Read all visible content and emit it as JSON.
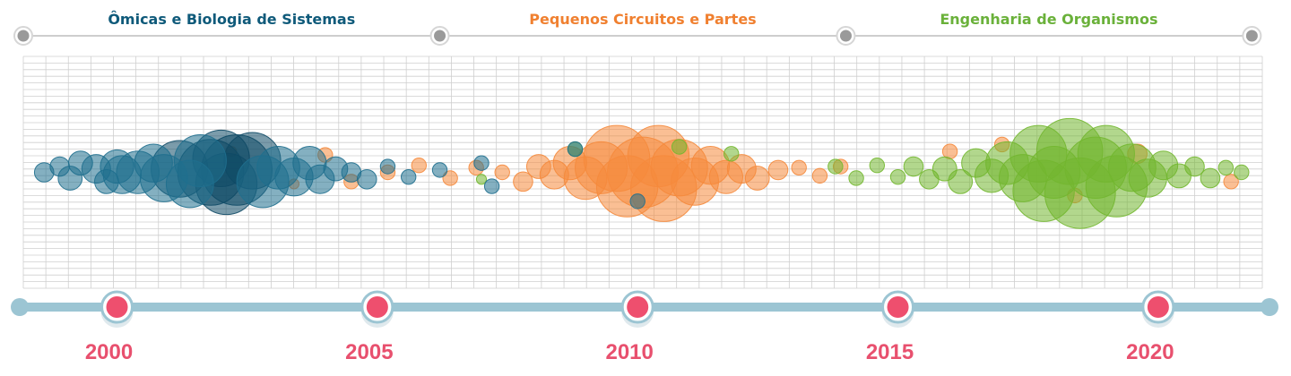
{
  "colors": {
    "omics": "#1f6f8e",
    "omics_dark": "#0f4a66",
    "circuits": "#f58a3c",
    "organisms": "#72b72f",
    "timeline": "#9cc5d3",
    "marker": "#ee4f6e",
    "grid": "#cfcfcf",
    "node": "#9a9a9a"
  },
  "chart_data": {
    "type": "scatter",
    "title": "",
    "xlabel": "",
    "ylabel": "",
    "xlim": [
      1998.2,
      2022
    ],
    "ylim": [
      -1,
      1
    ],
    "grid": true,
    "x_ticks": [
      "2000",
      "2005",
      "2010",
      "2015",
      "2020"
    ],
    "eras": [
      {
        "label": "Ômicas e Biologia de Sistemas",
        "start": 1998.2,
        "end": 2006.2,
        "color": "#0f5a7a"
      },
      {
        "label": "Pequenos Circuitos e Partes",
        "start": 2006.2,
        "end": 2014.0,
        "color": "#f08030"
      },
      {
        "label": "Engenharia de Organismos",
        "start": 2014.0,
        "end": 2021.8,
        "color": "#6ab13a"
      }
    ],
    "series": [
      {
        "category": "omics",
        "color": "#1f6f8e",
        "points": [
          {
            "x": 1998.6,
            "y": 0.0,
            "s": 3
          },
          {
            "x": 1998.9,
            "y": 0.05,
            "s": 3
          },
          {
            "x": 1999.1,
            "y": -0.05,
            "s": 4
          },
          {
            "x": 1999.3,
            "y": 0.08,
            "s": 4
          },
          {
            "x": 1999.6,
            "y": 0.03,
            "s": 5
          },
          {
            "x": 1999.8,
            "y": -0.08,
            "s": 4
          },
          {
            "x": 2000.0,
            "y": 0.05,
            "s": 6
          },
          {
            "x": 2000.1,
            "y": -0.02,
            "s": 7
          },
          {
            "x": 2000.4,
            "y": 0.0,
            "s": 8
          },
          {
            "x": 2000.7,
            "y": 0.08,
            "s": 7
          },
          {
            "x": 2000.9,
            "y": -0.05,
            "s": 9
          },
          {
            "x": 2001.2,
            "y": 0.03,
            "s": 11
          },
          {
            "x": 2001.4,
            "y": -0.1,
            "s": 9
          },
          {
            "x": 2001.6,
            "y": 0.1,
            "s": 10
          },
          {
            "x": 2001.8,
            "y": 0.0,
            "s": 13
          },
          {
            "x": 2002.0,
            "y": 0.12,
            "s": 11
          },
          {
            "x": 2002.1,
            "y": -0.1,
            "s": 12
          },
          {
            "x": 2002.3,
            "y": 0.02,
            "s": 14
          },
          {
            "x": 2002.6,
            "y": 0.1,
            "s": 11
          },
          {
            "x": 2002.8,
            "y": -0.08,
            "s": 10
          },
          {
            "x": 2003.1,
            "y": 0.04,
            "s": 8
          },
          {
            "x": 2003.4,
            "y": -0.04,
            "s": 7
          },
          {
            "x": 2003.7,
            "y": 0.08,
            "s": 6
          },
          {
            "x": 2003.9,
            "y": -0.06,
            "s": 5
          },
          {
            "x": 2004.2,
            "y": 0.03,
            "s": 4
          },
          {
            "x": 2004.5,
            "y": 0.0,
            "s": 3
          },
          {
            "x": 2004.8,
            "y": -0.06,
            "s": 3
          },
          {
            "x": 2005.2,
            "y": 0.05,
            "s": 2
          },
          {
            "x": 2005.6,
            "y": -0.04,
            "s": 2
          },
          {
            "x": 2006.2,
            "y": 0.02,
            "s": 2
          },
          {
            "x": 2007.0,
            "y": 0.08,
            "s": 2
          },
          {
            "x": 2007.2,
            "y": -0.12,
            "s": 2
          },
          {
            "x": 2008.8,
            "y": 0.2,
            "s": 2
          },
          {
            "x": 2010.0,
            "y": -0.25,
            "s": 2
          }
        ]
      },
      {
        "category": "circuits",
        "color": "#f58a3c",
        "points": [
          {
            "x": 2002.2,
            "y": 0.18,
            "s": 1
          },
          {
            "x": 2003.4,
            "y": -0.1,
            "s": 1
          },
          {
            "x": 2004.0,
            "y": 0.15,
            "s": 2
          },
          {
            "x": 2004.5,
            "y": -0.08,
            "s": 2
          },
          {
            "x": 2005.2,
            "y": 0.0,
            "s": 2
          },
          {
            "x": 2005.8,
            "y": 0.06,
            "s": 2
          },
          {
            "x": 2006.4,
            "y": -0.05,
            "s": 2
          },
          {
            "x": 2006.9,
            "y": 0.04,
            "s": 2
          },
          {
            "x": 2007.4,
            "y": 0.0,
            "s": 2
          },
          {
            "x": 2007.8,
            "y": -0.08,
            "s": 3
          },
          {
            "x": 2008.1,
            "y": 0.05,
            "s": 4
          },
          {
            "x": 2008.4,
            "y": -0.02,
            "s": 5
          },
          {
            "x": 2008.7,
            "y": 0.08,
            "s": 6
          },
          {
            "x": 2009.0,
            "y": -0.05,
            "s": 8
          },
          {
            "x": 2009.3,
            "y": 0.04,
            "s": 10
          },
          {
            "x": 2009.6,
            "y": 0.12,
            "s": 13
          },
          {
            "x": 2009.8,
            "y": -0.12,
            "s": 12
          },
          {
            "x": 2010.1,
            "y": 0.0,
            "s": 14
          },
          {
            "x": 2010.4,
            "y": 0.14,
            "s": 12
          },
          {
            "x": 2010.5,
            "y": -0.14,
            "s": 13
          },
          {
            "x": 2010.8,
            "y": 0.04,
            "s": 11
          },
          {
            "x": 2011.1,
            "y": -0.08,
            "s": 9
          },
          {
            "x": 2011.4,
            "y": 0.06,
            "s": 7
          },
          {
            "x": 2011.7,
            "y": -0.04,
            "s": 6
          },
          {
            "x": 2012.0,
            "y": 0.03,
            "s": 5
          },
          {
            "x": 2012.3,
            "y": -0.05,
            "s": 4
          },
          {
            "x": 2012.7,
            "y": 0.02,
            "s": 3
          },
          {
            "x": 2013.1,
            "y": 0.04,
            "s": 2
          },
          {
            "x": 2013.5,
            "y": -0.03,
            "s": 2
          },
          {
            "x": 2013.9,
            "y": 0.05,
            "s": 2
          },
          {
            "x": 2016.0,
            "y": 0.18,
            "s": 2
          },
          {
            "x": 2017.0,
            "y": 0.24,
            "s": 2
          },
          {
            "x": 2018.4,
            "y": -0.2,
            "s": 2
          },
          {
            "x": 2019.6,
            "y": 0.16,
            "s": 3
          },
          {
            "x": 2021.4,
            "y": -0.08,
            "s": 2
          }
        ]
      },
      {
        "category": "organisms",
        "color": "#72b72f",
        "points": [
          {
            "x": 2007.0,
            "y": -0.06,
            "s": 1
          },
          {
            "x": 2008.8,
            "y": 0.2,
            "s": 2
          },
          {
            "x": 2010.8,
            "y": 0.22,
            "s": 2
          },
          {
            "x": 2011.8,
            "y": 0.16,
            "s": 2
          },
          {
            "x": 2013.8,
            "y": 0.05,
            "s": 2
          },
          {
            "x": 2014.2,
            "y": -0.05,
            "s": 2
          },
          {
            "x": 2014.6,
            "y": 0.06,
            "s": 2
          },
          {
            "x": 2015.0,
            "y": -0.04,
            "s": 2
          },
          {
            "x": 2015.3,
            "y": 0.05,
            "s": 3
          },
          {
            "x": 2015.6,
            "y": -0.06,
            "s": 3
          },
          {
            "x": 2015.9,
            "y": 0.03,
            "s": 4
          },
          {
            "x": 2016.2,
            "y": -0.08,
            "s": 4
          },
          {
            "x": 2016.5,
            "y": 0.08,
            "s": 5
          },
          {
            "x": 2016.8,
            "y": -0.03,
            "s": 6
          },
          {
            "x": 2017.1,
            "y": 0.08,
            "s": 8
          },
          {
            "x": 2017.4,
            "y": -0.05,
            "s": 9
          },
          {
            "x": 2017.7,
            "y": 0.16,
            "s": 11
          },
          {
            "x": 2017.8,
            "y": -0.16,
            "s": 12
          },
          {
            "x": 2018.0,
            "y": 0.0,
            "s": 10
          },
          {
            "x": 2018.3,
            "y": 0.18,
            "s": 13
          },
          {
            "x": 2018.5,
            "y": -0.18,
            "s": 14
          },
          {
            "x": 2018.8,
            "y": 0.04,
            "s": 12
          },
          {
            "x": 2019.0,
            "y": 0.16,
            "s": 11
          },
          {
            "x": 2019.2,
            "y": -0.12,
            "s": 12
          },
          {
            "x": 2019.5,
            "y": 0.04,
            "s": 9
          },
          {
            "x": 2019.8,
            "y": -0.05,
            "s": 7
          },
          {
            "x": 2020.1,
            "y": 0.06,
            "s": 5
          },
          {
            "x": 2020.4,
            "y": -0.03,
            "s": 4
          },
          {
            "x": 2020.7,
            "y": 0.05,
            "s": 3
          },
          {
            "x": 2021.0,
            "y": -0.05,
            "s": 3
          },
          {
            "x": 2021.3,
            "y": 0.04,
            "s": 2
          },
          {
            "x": 2021.6,
            "y": 0.0,
            "s": 2
          }
        ]
      }
    ]
  }
}
